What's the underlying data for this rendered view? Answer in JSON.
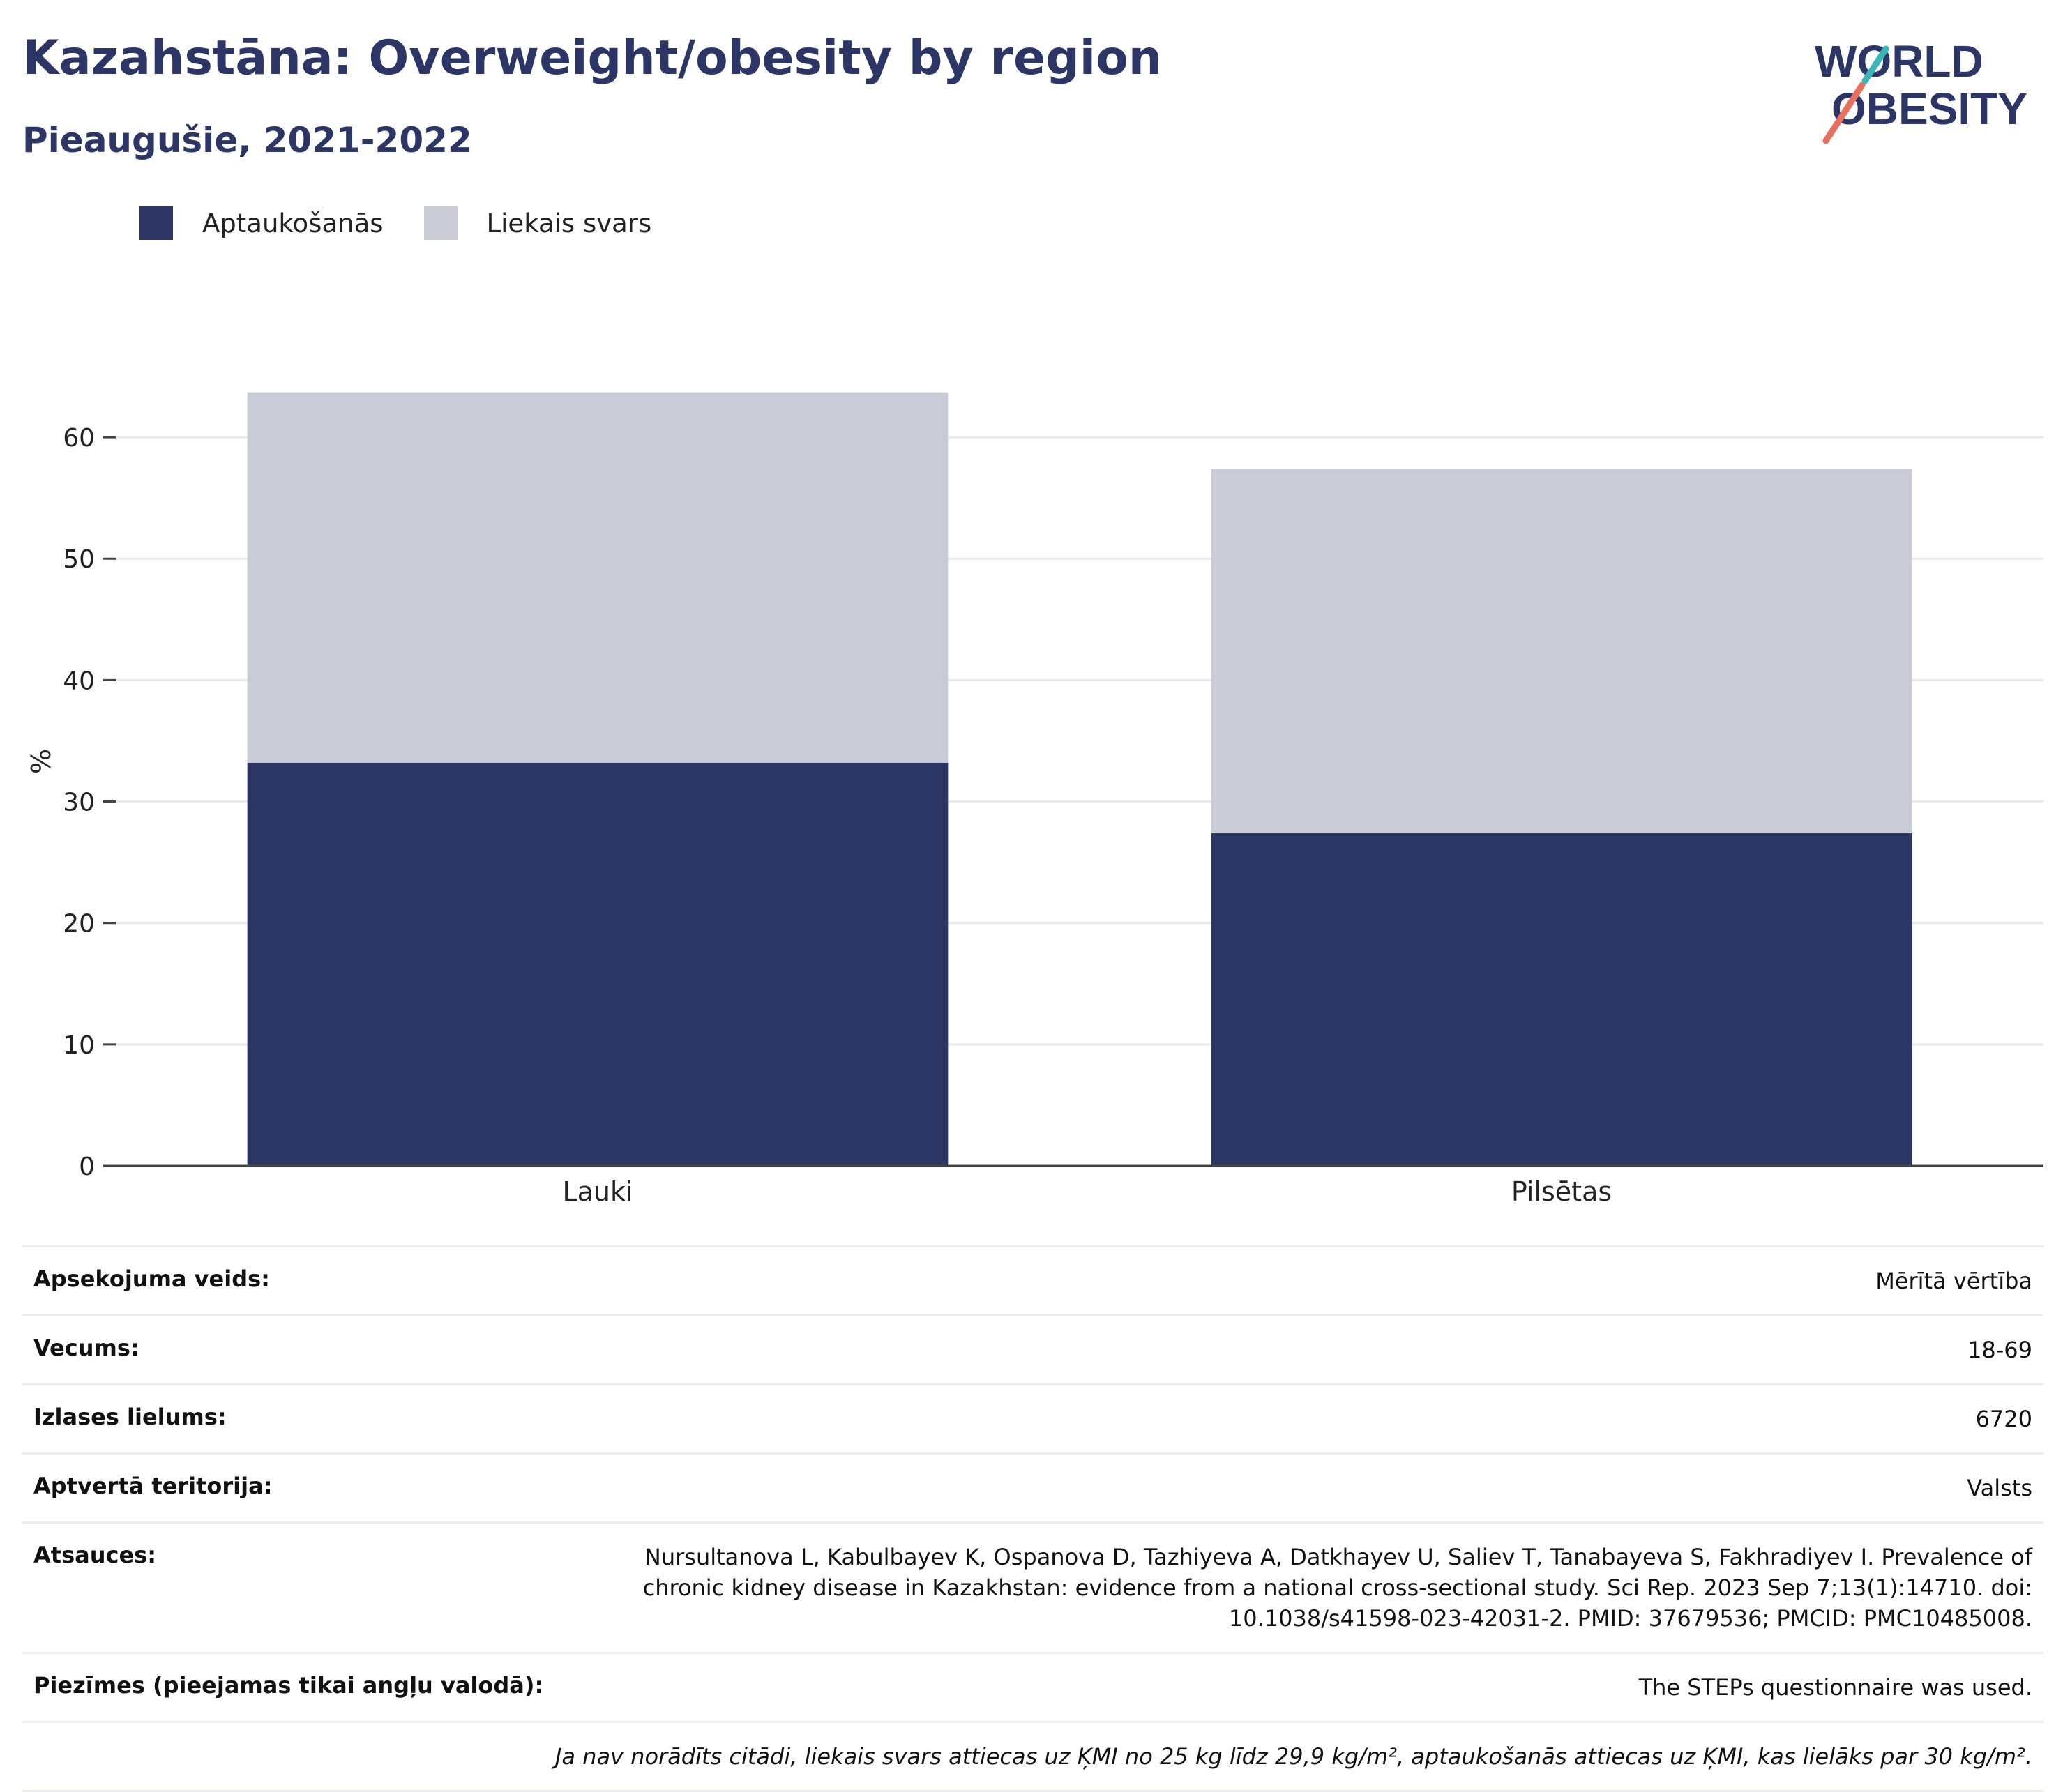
{
  "header": {
    "title": "Kazahstāna: Overweight/obesity by region",
    "subtitle": "Pieaugušie, 2021-2022"
  },
  "logo": {
    "line1": "WORLD",
    "line2": "OBESITY"
  },
  "colors": {
    "obesity": "#2b3664",
    "overweight": "#c9ccd7",
    "title": "#2b3666",
    "grid": "#e9e9ee",
    "axis": "#444444"
  },
  "legend": [
    {
      "label": "Aptaukošanās",
      "color": "#2b3664"
    },
    {
      "label": "Liekais svars",
      "color": "#c9ccd7"
    }
  ],
  "chart_data": {
    "type": "bar",
    "stacked": true,
    "categories": [
      "Lauki",
      "Pilsētas"
    ],
    "series": [
      {
        "name": "Aptaukošanās",
        "values": [
          33.2,
          27.4
        ]
      },
      {
        "name": "Liekais svars",
        "values": [
          30.5,
          30.0
        ]
      }
    ],
    "ylabel": "%",
    "xlabel": "",
    "ylim": [
      0,
      65
    ],
    "yticks": [
      0,
      10,
      20,
      30,
      40,
      50,
      60
    ],
    "grid": true,
    "legend_position": "top-left"
  },
  "info": [
    {
      "key": "Apsekojuma veids:",
      "value": "Mērītā vērtība"
    },
    {
      "key": "Vecums:",
      "value": "18-69"
    },
    {
      "key": "Izlases lielums:",
      "value": "6720"
    },
    {
      "key": "Aptvertā teritorija:",
      "value": "Valsts"
    },
    {
      "key": "Atsauces:",
      "value": "Nursultanova L, Kabulbayev K, Ospanova D, Tazhiyeva A, Datkhayev U, Saliev T, Tanabayeva S, Fakhradiyev I. Prevalence of chronic kidney disease in Kazakhstan: evidence from a national cross-sectional study. Sci Rep. 2023 Sep 7;13(1):14710. doi: 10.1038/s41598-023-42031-2. PMID: 37679536; PMCID: PMC10485008."
    },
    {
      "key": "Piezīmes (pieejamas tikai angļu valodā):",
      "value": "The STEPs questionnaire was used."
    }
  ],
  "footnote": "Ja nav norādīts citādi, liekais svars attiecas uz ĶMI no 25 kg līdz 29,9 kg/m², aptaukošanās attiecas uz ĶMI, kas lielāks par 30 kg/m²."
}
